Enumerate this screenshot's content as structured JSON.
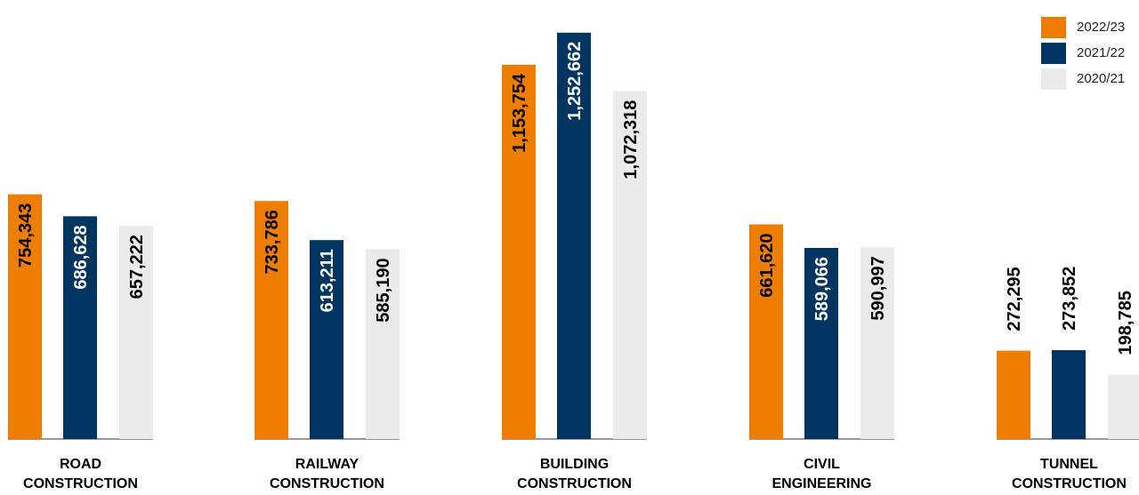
{
  "chart_data": {
    "type": "bar",
    "categories": [
      [
        "ROAD",
        "CONSTRUCTION"
      ],
      [
        "RAILWAY",
        "CONSTRUCTION"
      ],
      [
        "BUILDING",
        "CONSTRUCTION"
      ],
      [
        "CIVIL",
        "ENGINEERING"
      ],
      [
        "TUNNEL",
        "CONSTRUCTION"
      ]
    ],
    "series": [
      {
        "name": "2022/23",
        "color": "#EE7D00",
        "label_color": "#000000",
        "values": [
          754343,
          733786,
          1153754,
          661620,
          272295
        ],
        "labels": [
          "754,343",
          "733,786",
          "1,153,754",
          "661,620",
          "272,295"
        ]
      },
      {
        "name": "2021/22",
        "color": "#003461",
        "label_color": "#ffffff",
        "values": [
          686628,
          613211,
          1252662,
          589066,
          273852
        ],
        "labels": [
          "686,628",
          "613,211",
          "1,252,662",
          "589,066",
          "273,852"
        ]
      },
      {
        "name": "2020/21",
        "color": "#EBEBEB",
        "label_color": "#000000",
        "values": [
          657222,
          585190,
          1072318,
          590997,
          198785
        ],
        "labels": [
          "657,222",
          "585,190",
          "1,072,318",
          "590,997",
          "198,785"
        ]
      }
    ],
    "legend_position": "top-right",
    "grid": false
  }
}
